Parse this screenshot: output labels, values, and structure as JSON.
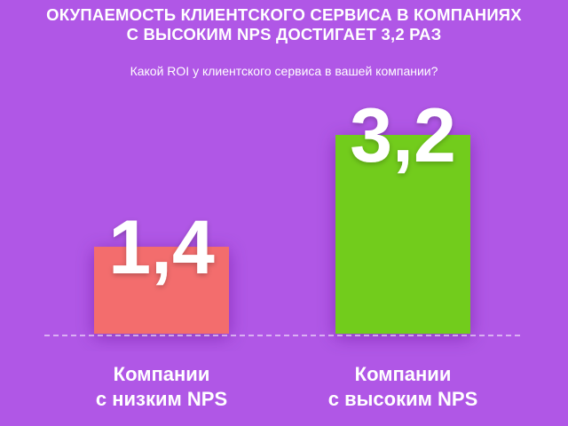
{
  "header": {
    "title_lines": [
      "ОКУПАЕМОСТЬ КЛИЕНТСКОГО СЕРВИСА В КОМПАНИЯХ",
      "С ВЫСОКИМ NPS ДОСТИГАЕТ 3,2 РАЗ"
    ],
    "subtitle": "Какой ROI у клиентского сервиса в вашей компании?"
  },
  "chart_data": {
    "type": "bar",
    "categories": [
      [
        "Компании",
        "с низким NPS"
      ],
      [
        "Компании",
        "с высоким NPS"
      ]
    ],
    "values": [
      1.4,
      3.2
    ],
    "value_labels": [
      "1,4",
      "3,2"
    ],
    "ylim": [
      0,
      3.2
    ],
    "grid": false,
    "colors": [
      "#f36d6d",
      "#72cc1c"
    ],
    "baseline_style": "dashed"
  }
}
